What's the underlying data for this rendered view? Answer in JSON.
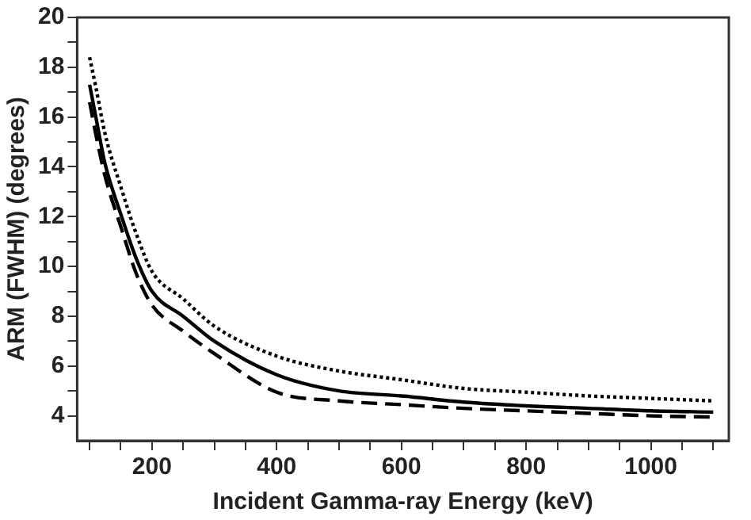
{
  "chart_data": {
    "type": "line",
    "xlabel": "Incident Gamma-ray Energy (keV)",
    "ylabel": "ARM (FWHM) (degrees)",
    "xlim": [
      80,
      1125
    ],
    "ylim": [
      3,
      20
    ],
    "xticks": [
      {
        "value": 100,
        "label": null
      },
      {
        "value": 150,
        "label": null
      },
      200,
      {
        "value": 250,
        "label": null
      },
      {
        "value": 300,
        "label": null
      },
      {
        "value": 350,
        "label": null
      },
      400,
      {
        "value": 450,
        "label": null
      },
      {
        "value": 500,
        "label": null
      },
      {
        "value": 550,
        "label": null
      },
      600,
      {
        "value": 650,
        "label": null
      },
      {
        "value": 700,
        "label": null
      },
      {
        "value": 750,
        "label": null
      },
      800,
      {
        "value": 850,
        "label": null
      },
      {
        "value": 900,
        "label": null
      },
      {
        "value": 950,
        "label": null
      },
      1000,
      {
        "value": 1050,
        "label": null
      },
      {
        "value": 1100,
        "label": null
      }
    ],
    "yticks": [
      4,
      {
        "value": 5,
        "label": null
      },
      6,
      {
        "value": 7,
        "label": null
      },
      8,
      {
        "value": 9,
        "label": null
      },
      10,
      {
        "value": 11,
        "label": null
      },
      12,
      {
        "value": 13,
        "label": null
      },
      14,
      {
        "value": 15,
        "label": null
      },
      16,
      {
        "value": 17,
        "label": null
      },
      18,
      {
        "value": 19,
        "label": null
      },
      20
    ],
    "grid": false,
    "legend": false,
    "marker": "none",
    "x": [
      100,
      110,
      125,
      150,
      175,
      200,
      250,
      300,
      400,
      500,
      600,
      700,
      800,
      900,
      1000,
      1100
    ],
    "series": [
      {
        "color": "#000000",
        "line_style": "solid",
        "values": [
          17.3,
          16.0,
          14.1,
          12.1,
          10.3,
          9.0,
          8.0,
          7.0,
          5.65,
          5.0,
          4.8,
          4.55,
          4.4,
          4.3,
          4.2,
          4.15
        ]
      },
      {
        "color": "#000000",
        "line_style": "dashed",
        "values": [
          16.6,
          15.3,
          13.6,
          11.6,
          9.7,
          8.45,
          7.4,
          6.5,
          4.95,
          4.6,
          4.45,
          4.3,
          4.2,
          4.1,
          4.0,
          3.95
        ]
      },
      {
        "color": "#000000",
        "line_style": "dotted",
        "values": [
          18.4,
          17.2,
          15.3,
          13.2,
          11.3,
          9.8,
          8.7,
          7.6,
          6.4,
          5.8,
          5.45,
          5.1,
          4.95,
          4.8,
          4.7,
          4.6
        ]
      }
    ]
  }
}
